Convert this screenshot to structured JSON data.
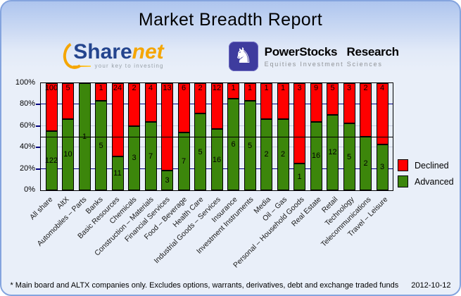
{
  "title": "Market Breadth Report",
  "logos": {
    "sharenet": {
      "main": "Share",
      "accent": "net",
      "tagline": "your key to investing"
    },
    "powerstocks": {
      "name": "PowerStocks Research",
      "tagline": "Equities Investment Sciences",
      "icon_glyph": "♞"
    }
  },
  "chart_data": {
    "type": "bar",
    "stacked": true,
    "normalized": "each bar scaled to 100%, labels show raw company counts",
    "categories": [
      "All share",
      "AltX",
      "Automobiles – Parts",
      "Banks",
      "Basic Resources",
      "Chemicals",
      "Construction – Materials",
      "Financial Services",
      "Food – Beverage",
      "Health Care",
      "Industrial Goods – Services",
      "Insurance",
      "Investment Instruments",
      "Media",
      "Oil – Gas",
      "Personal – Household Goods",
      "Real Estate",
      "Retail",
      "Technology",
      "Telecommunications",
      "Travel – Leisure"
    ],
    "series": [
      {
        "name": "Declined",
        "color": "#ff0000",
        "values": [
          100,
          5,
          0,
          1,
          24,
          2,
          4,
          13,
          6,
          2,
          12,
          1,
          1,
          1,
          1,
          3,
          9,
          5,
          3,
          2,
          4
        ]
      },
      {
        "name": "Advanced",
        "color": "#3c860b",
        "values": [
          122,
          10,
          1,
          5,
          11,
          3,
          7,
          3,
          7,
          5,
          16,
          6,
          5,
          2,
          2,
          1,
          16,
          12,
          5,
          2,
          3
        ]
      }
    ],
    "yticks": [
      "0%",
      "20%",
      "40%",
      "60%",
      "80%",
      "100%"
    ],
    "ylim": [
      0,
      100
    ],
    "legend_position": "right-top",
    "colors": {
      "grid_major": "#000080",
      "grid_minor": "#c2cbdd",
      "midline_50pct": "#000000"
    }
  },
  "footer": {
    "note": "* Main board and ALTX companies only. Excludes options, warrants, derivatives, debt and exchange traded funds",
    "date": "2012-10-12"
  }
}
